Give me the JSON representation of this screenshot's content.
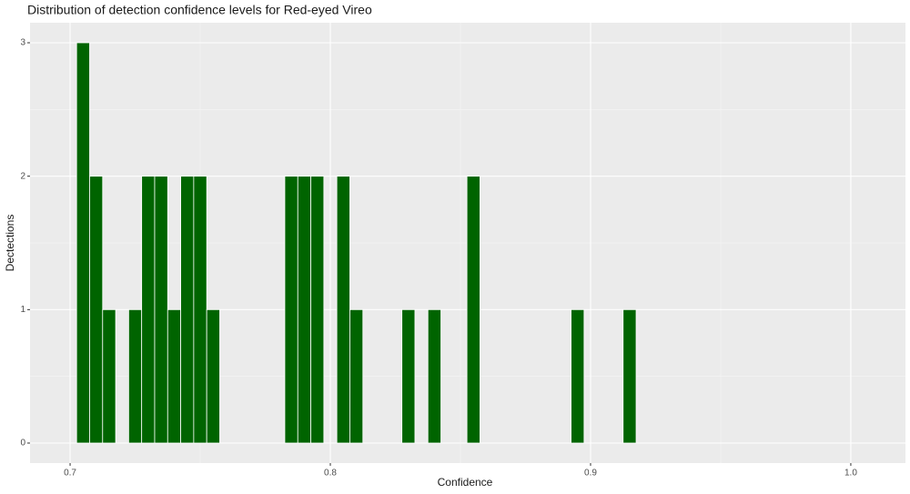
{
  "chart_data": {
    "type": "histogram",
    "title": "Distribution of detection confidence levels for Red-eyed Vireo",
    "x_label": "Confidence",
    "y_label": "Dectections",
    "bins": [
      0.7025,
      0.7075,
      0.7125,
      0.7175,
      0.7225,
      0.7275,
      0.7325,
      0.7375,
      0.7425,
      0.7475,
      0.7525,
      0.7575,
      0.7625,
      0.7675,
      0.7725,
      0.7775,
      0.7825,
      0.7875,
      0.7925,
      0.7975,
      0.8025,
      0.8075,
      0.8125,
      0.8175,
      0.8225,
      0.8275,
      0.8325,
      0.8375,
      0.8425,
      0.8475,
      0.8525,
      0.8575,
      0.8625,
      0.8675,
      0.8725,
      0.8775,
      0.8825,
      0.8875,
      0.8925,
      0.8975,
      0.9025,
      0.9075,
      0.9125,
      0.9175
    ],
    "values": [
      3,
      2,
      1,
      0,
      1,
      2,
      2,
      1,
      2,
      2,
      1,
      0,
      0,
      0,
      0,
      0,
      2,
      2,
      2,
      0,
      2,
      1,
      0,
      0,
      0,
      1,
      0,
      1,
      0,
      0,
      2,
      0,
      0,
      0,
      0,
      0,
      0,
      0,
      1,
      0,
      0,
      0,
      1
    ],
    "color": "#006400",
    "xlim": [
      0.6846,
      1.021
    ],
    "xticks": [
      0.7,
      0.8,
      0.9,
      {
        "value": 1.0,
        "label": "1.0"
      }
    ],
    "ylim": [
      -0.15,
      3.15
    ],
    "yticks": [
      0,
      1,
      2,
      3
    ],
    "x_minor_grid": [
      0.75,
      0.85,
      0.95
    ],
    "y_minor_grid": [
      0.5,
      1.5,
      2.5
    ],
    "grid": true
  }
}
